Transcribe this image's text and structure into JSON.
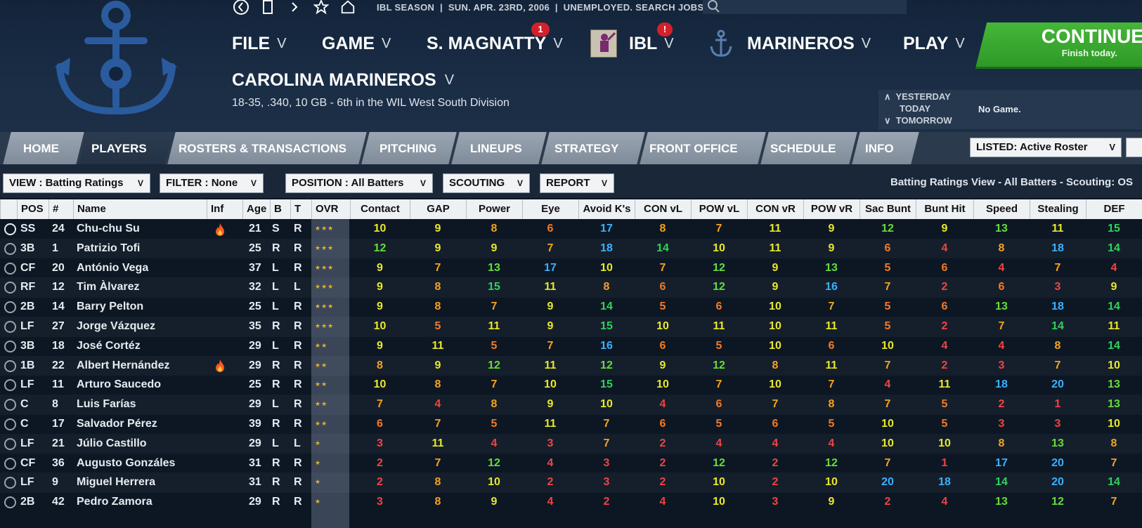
{
  "topbar": {
    "season": "IBL SEASON",
    "date": "SUN. APR. 23RD, 2006",
    "status": "UNEMPLOYED. SEARCH JOBS..."
  },
  "menu": {
    "file": "FILE",
    "game": "GAME",
    "manager": "S. MAGNATTY",
    "manager_badge": "1",
    "league": "IBL",
    "league_badge": "!",
    "team": "MARINEROS",
    "play": "PLAY"
  },
  "continue": {
    "label": "CONTINUE",
    "sub": "Finish today."
  },
  "team": {
    "name": "CAROLINA MARINEROS",
    "record": "18-35, .340, 10 GB - 6th in the WIL West South Division"
  },
  "daynav": {
    "yesterday": "YESTERDAY",
    "today": "TODAY",
    "tomorrow": "TOMORROW",
    "status": "No Game."
  },
  "tabs": [
    "HOME",
    "PLAYERS",
    "ROSTERS & TRANSACTIONS",
    "PITCHING",
    "LINEUPS",
    "STRATEGY",
    "FRONT OFFICE",
    "SCHEDULE",
    "INFO"
  ],
  "listed": "LISTED: Active Roster",
  "filters": {
    "view": "VIEW : Batting Ratings",
    "filter": "FILTER : None",
    "position": "POSITION : All Batters",
    "scouting": "SCOUTING",
    "report": "REPORT",
    "description": "Batting Ratings View - All Batters - Scouting: OS"
  },
  "columns": [
    "POS",
    "#",
    "Name",
    "Inf",
    "Age",
    "B",
    "T",
    "OVR",
    "Contact",
    "GAP",
    "Power",
    "Eye",
    "Avoid K's",
    "CON vL",
    "POW vL",
    "CON vR",
    "POW vR",
    "Sac Bunt",
    "Bunt Hit",
    "Speed",
    "Stealing",
    "DEF"
  ],
  "rows": [
    {
      "pos": "SS",
      "num": "24",
      "name": "Chu-chu Su",
      "inf": "fire",
      "age": "21",
      "b": "S",
      "t": "R",
      "stars": 3,
      "r": [
        10,
        9,
        8,
        6,
        17,
        8,
        7,
        11,
        9,
        12,
        9,
        13,
        11,
        15
      ]
    },
    {
      "pos": "3B",
      "num": "1",
      "name": "Patrizio Tofi",
      "inf": "",
      "age": "25",
      "b": "R",
      "t": "R",
      "stars": 3,
      "r": [
        12,
        9,
        9,
        7,
        18,
        14,
        10,
        11,
        9,
        6,
        4,
        8,
        18,
        14
      ]
    },
    {
      "pos": "CF",
      "num": "20",
      "name": "António Vega",
      "inf": "",
      "age": "37",
      "b": "L",
      "t": "R",
      "stars": 3,
      "r": [
        9,
        7,
        13,
        17,
        10,
        7,
        12,
        9,
        13,
        5,
        6,
        4,
        7,
        4
      ]
    },
    {
      "pos": "RF",
      "num": "12",
      "name": "Tim Àlvarez",
      "inf": "",
      "age": "32",
      "b": "L",
      "t": "L",
      "stars": 3,
      "r": [
        9,
        8,
        15,
        11,
        8,
        6,
        12,
        9,
        16,
        7,
        2,
        6,
        3,
        9
      ]
    },
    {
      "pos": "2B",
      "num": "14",
      "name": "Barry Pelton",
      "inf": "",
      "age": "25",
      "b": "L",
      "t": "R",
      "stars": 3,
      "r": [
        9,
        8,
        7,
        9,
        14,
        5,
        6,
        10,
        7,
        5,
        6,
        13,
        18,
        14
      ]
    },
    {
      "pos": "LF",
      "num": "27",
      "name": "Jorge Vázquez",
      "inf": "",
      "age": "35",
      "b": "R",
      "t": "R",
      "stars": 3,
      "r": [
        10,
        5,
        11,
        9,
        15,
        10,
        11,
        10,
        11,
        5,
        2,
        7,
        14,
        11
      ]
    },
    {
      "pos": "3B",
      "num": "18",
      "name": "José Cortéz",
      "inf": "",
      "age": "29",
      "b": "L",
      "t": "R",
      "stars": 2,
      "r": [
        9,
        11,
        5,
        7,
        16,
        6,
        5,
        10,
        6,
        10,
        4,
        4,
        8,
        14
      ]
    },
    {
      "pos": "1B",
      "num": "22",
      "name": "Albert Hernández",
      "inf": "fire",
      "age": "29",
      "b": "R",
      "t": "R",
      "stars": 2,
      "r": [
        8,
        9,
        12,
        11,
        12,
        9,
        12,
        8,
        11,
        7,
        2,
        3,
        7,
        10
      ]
    },
    {
      "pos": "LF",
      "num": "11",
      "name": "Arturo Saucedo",
      "inf": "",
      "age": "25",
      "b": "R",
      "t": "R",
      "stars": 2,
      "r": [
        10,
        8,
        7,
        10,
        15,
        10,
        7,
        10,
        7,
        4,
        11,
        18,
        20,
        13
      ]
    },
    {
      "pos": "C",
      "num": "8",
      "name": "Luis Farías",
      "inf": "",
      "age": "29",
      "b": "L",
      "t": "R",
      "stars": 2,
      "r": [
        7,
        4,
        8,
        9,
        10,
        4,
        6,
        7,
        8,
        7,
        5,
        2,
        1,
        13
      ]
    },
    {
      "pos": "C",
      "num": "17",
      "name": "Salvador Pérez",
      "inf": "",
      "age": "39",
      "b": "R",
      "t": "R",
      "stars": 2,
      "r": [
        6,
        7,
        5,
        11,
        7,
        6,
        5,
        6,
        5,
        10,
        5,
        3,
        3,
        10
      ]
    },
    {
      "pos": "LF",
      "num": "21",
      "name": "Júlio Castillo",
      "inf": "",
      "age": "29",
      "b": "L",
      "t": "L",
      "stars": 1,
      "r": [
        3,
        11,
        4,
        3,
        7,
        2,
        4,
        4,
        4,
        10,
        10,
        8,
        13,
        8
      ]
    },
    {
      "pos": "CF",
      "num": "36",
      "name": "Augusto Gonzáles",
      "inf": "",
      "age": "31",
      "b": "R",
      "t": "R",
      "stars": 1,
      "r": [
        2,
        7,
        12,
        4,
        3,
        2,
        12,
        2,
        12,
        7,
        1,
        17,
        20,
        7
      ]
    },
    {
      "pos": "LF",
      "num": "9",
      "name": "Miguel Herrera",
      "inf": "",
      "age": "31",
      "b": "R",
      "t": "R",
      "stars": 1,
      "r": [
        2,
        8,
        10,
        2,
        3,
        2,
        10,
        2,
        10,
        20,
        18,
        14,
        20,
        14
      ]
    },
    {
      "pos": "2B",
      "num": "42",
      "name": "Pedro Zamora",
      "inf": "",
      "age": "29",
      "b": "R",
      "t": "R",
      "stars": 1,
      "r": [
        3,
        8,
        9,
        4,
        2,
        4,
        10,
        3,
        9,
        2,
        4,
        13,
        12,
        7
      ]
    }
  ]
}
